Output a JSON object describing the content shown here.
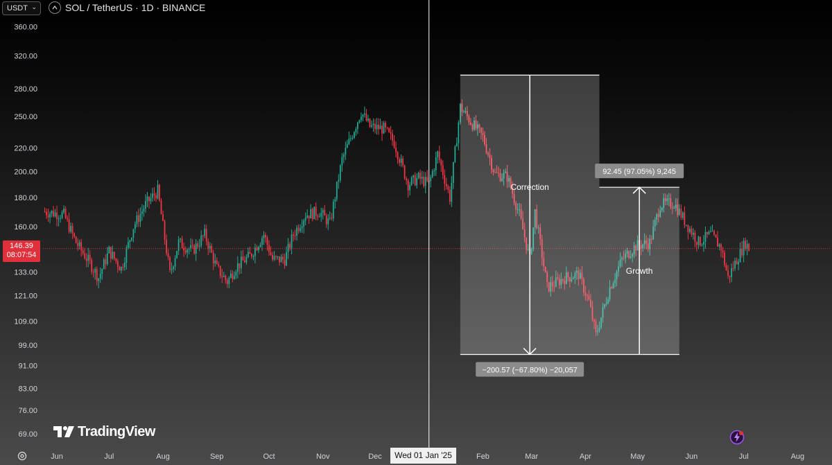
{
  "header": {
    "currency": "USDT",
    "currency_chevron": "⌄",
    "collapse_icon": "chevron-up-icon",
    "title": "SOL / TetherUS · 1D · BINANCE"
  },
  "badges": {
    "last_price": "146.39",
    "countdown": "08:07:54",
    "crosshair_date": "Wed 01 Jan '25"
  },
  "branding": {
    "name": "TradingView"
  },
  "colors": {
    "up": "#22ab94",
    "down": "#f23645",
    "badge": "#e0303c"
  },
  "chart_data": {
    "type": "candlestick",
    "symbol": "SOL / TetherUS",
    "interval": "1D",
    "exchange": "BINANCE",
    "scale": "log",
    "ylim": [
      66,
      375
    ],
    "y_ticks": [
      69,
      76,
      83,
      91,
      99,
      109,
      121,
      133,
      160,
      180,
      200,
      220,
      250,
      280,
      320,
      360
    ],
    "y_tick_labels": [
      "69.00",
      "76.00",
      "83.00",
      "91.00",
      "99.00",
      "109.00",
      "121.00",
      "133.00",
      "160.00",
      "180.00",
      "200.00",
      "220.00",
      "250.00",
      "280.00",
      "320.00",
      "360.00"
    ],
    "x_range": [
      "2024-05-24",
      "2025-08-20"
    ],
    "x_ticks": [
      {
        "label": "Jun",
        "date": "2024-06-01"
      },
      {
        "label": "Jul",
        "date": "2024-07-01"
      },
      {
        "label": "Aug",
        "date": "2024-08-01"
      },
      {
        "label": "Sep",
        "date": "2024-09-01"
      },
      {
        "label": "Oct",
        "date": "2024-10-01"
      },
      {
        "label": "Nov",
        "date": "2024-11-01"
      },
      {
        "label": "Dec",
        "date": "2024-12-01"
      },
      {
        "label": "Feb",
        "date": "2025-02-01"
      },
      {
        "label": "Mar",
        "date": "2025-03-01"
      },
      {
        "label": "Apr",
        "date": "2025-04-01"
      },
      {
        "label": "May",
        "date": "2025-05-01"
      },
      {
        "label": "Jun",
        "date": "2025-06-01"
      },
      {
        "label": "Jul",
        "date": "2025-07-01"
      },
      {
        "label": "Aug",
        "date": "2025-08-01"
      }
    ],
    "crosshair": {
      "date": "2025-01-01"
    },
    "last_price": 146.39,
    "price_path": [
      [
        "2024-05-25",
        170
      ],
      [
        "2024-06-05",
        168
      ],
      [
        "2024-06-12",
        150
      ],
      [
        "2024-06-20",
        138
      ],
      [
        "2024-06-25",
        130
      ],
      [
        "2024-07-01",
        145
      ],
      [
        "2024-07-08",
        135
      ],
      [
        "2024-07-15",
        160
      ],
      [
        "2024-07-22",
        175
      ],
      [
        "2024-07-29",
        185
      ],
      [
        "2024-08-05",
        132
      ],
      [
        "2024-08-10",
        150
      ],
      [
        "2024-08-18",
        145
      ],
      [
        "2024-08-25",
        155
      ],
      [
        "2024-09-01",
        135
      ],
      [
        "2024-09-07",
        128
      ],
      [
        "2024-09-12",
        136
      ],
      [
        "2024-09-20",
        142
      ],
      [
        "2024-09-28",
        155
      ],
      [
        "2024-10-03",
        140
      ],
      [
        "2024-10-10",
        140
      ],
      [
        "2024-10-15",
        155
      ],
      [
        "2024-10-22",
        168
      ],
      [
        "2024-10-30",
        170
      ],
      [
        "2024-11-05",
        162
      ],
      [
        "2024-11-12",
        210
      ],
      [
        "2024-11-23",
        255
      ],
      [
        "2024-11-28",
        240
      ],
      [
        "2024-12-06",
        238
      ],
      [
        "2024-12-12",
        225
      ],
      [
        "2024-12-20",
        190
      ],
      [
        "2024-12-26",
        195
      ],
      [
        "2025-01-01",
        190
      ],
      [
        "2025-01-06",
        215
      ],
      [
        "2025-01-13",
        180
      ],
      [
        "2025-01-19",
        260
      ],
      [
        "2025-01-25",
        245
      ],
      [
        "2025-02-01",
        230
      ],
      [
        "2025-02-08",
        198
      ],
      [
        "2025-02-15",
        196
      ],
      [
        "2025-02-22",
        168
      ],
      [
        "2025-02-28",
        140
      ],
      [
        "2025-03-03",
        170
      ],
      [
        "2025-03-10",
        125
      ],
      [
        "2025-03-20",
        130
      ],
      [
        "2025-03-28",
        132
      ],
      [
        "2025-04-03",
        118
      ],
      [
        "2025-04-07",
        103
      ],
      [
        "2025-04-15",
        125
      ],
      [
        "2025-04-22",
        140
      ],
      [
        "2025-04-30",
        148
      ],
      [
        "2025-05-08",
        150
      ],
      [
        "2025-05-14",
        175
      ],
      [
        "2025-05-22",
        176
      ],
      [
        "2025-05-29",
        162
      ],
      [
        "2025-06-05",
        150
      ],
      [
        "2025-06-12",
        155
      ],
      [
        "2025-06-18",
        147
      ],
      [
        "2025-06-22",
        130
      ],
      [
        "2025-06-27",
        140
      ],
      [
        "2025-07-02",
        150
      ],
      [
        "2025-07-04",
        146.39
      ]
    ],
    "measure_correction": {
      "label": "Correction",
      "stats": "−200.57 (−67.80%) −20,057",
      "x_start": "2025-01-19",
      "x_end": "2025-04-09",
      "price_from": 295.83,
      "price_to": 95.26
    },
    "measure_growth": {
      "label": "Growth",
      "stats": "92.45 (97.05%) 9,245",
      "x_start": "2025-04-09",
      "x_end": "2025-05-25",
      "price_from": 95.26,
      "price_to": 187.71
    }
  }
}
